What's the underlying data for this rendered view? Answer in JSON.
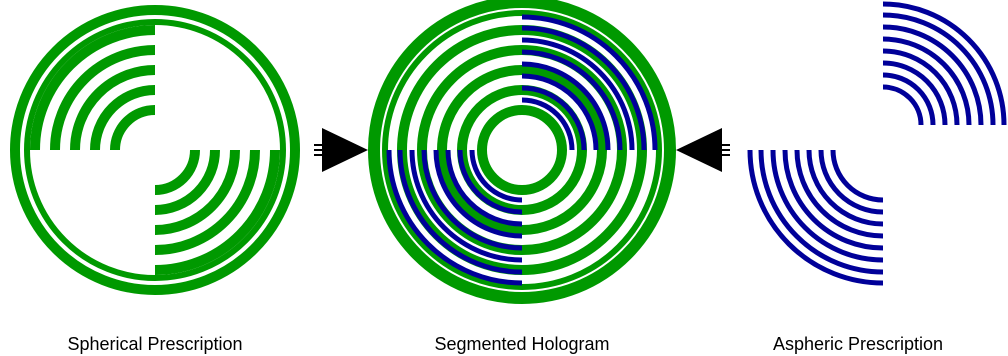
{
  "colors": {
    "spherical": "#009900",
    "aspheric": "#000099",
    "arrow": "#000000",
    "background": "#ffffff",
    "text": "#000000"
  },
  "panels": {
    "spherical": {
      "label": "Spherical Prescription"
    },
    "hologram": {
      "label": "Segmented Hologram"
    },
    "aspheric": {
      "label": "Aspheric Prescription"
    }
  },
  "arrows": [
    {
      "from": "spherical",
      "to": "hologram",
      "direction": "right"
    },
    {
      "from": "aspheric",
      "to": "hologram",
      "direction": "left"
    }
  ]
}
